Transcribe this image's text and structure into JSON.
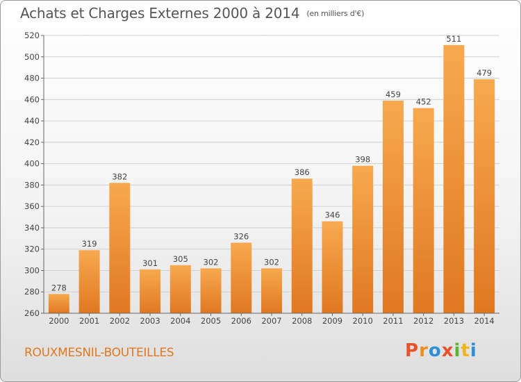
{
  "title": "Achats et Charges Externes 2000 à 2014",
  "unit_note": "(en milliers d'€)",
  "location": "ROUXMESNIL-BOUTEILLES",
  "logo": {
    "text": "Proxiti",
    "letters": [
      {
        "ch": "P",
        "color": "#e8512b"
      },
      {
        "ch": "r",
        "color": "#f08c1c"
      },
      {
        "ch": "o",
        "color": "#2a8fd6"
      },
      {
        "ch": "x",
        "color": "#e8512b"
      },
      {
        "ch": "i",
        "color": "#5cb531"
      },
      {
        "ch": "t",
        "color": "#f0b41c"
      },
      {
        "ch": "i",
        "color": "#2a8fd6"
      }
    ]
  },
  "colors": {
    "bar_light": "#f7a94f",
    "bar_dark": "#e07820",
    "grid": "#d0d0d0",
    "axis": "#666666",
    "text": "#444444"
  },
  "chart_data": {
    "type": "bar",
    "categories": [
      "2000",
      "2001",
      "2002",
      "2003",
      "2004",
      "2005",
      "2006",
      "2007",
      "2008",
      "2009",
      "2010",
      "2011",
      "2012",
      "2013",
      "2014"
    ],
    "values": [
      278,
      319,
      382,
      301,
      305,
      302,
      326,
      302,
      386,
      346,
      398,
      459,
      452,
      511,
      479
    ],
    "ylim": [
      260,
      520
    ],
    "yticks": [
      260,
      280,
      300,
      320,
      340,
      360,
      380,
      400,
      420,
      440,
      460,
      480,
      500,
      520
    ],
    "grid": true,
    "data_labels": true
  }
}
